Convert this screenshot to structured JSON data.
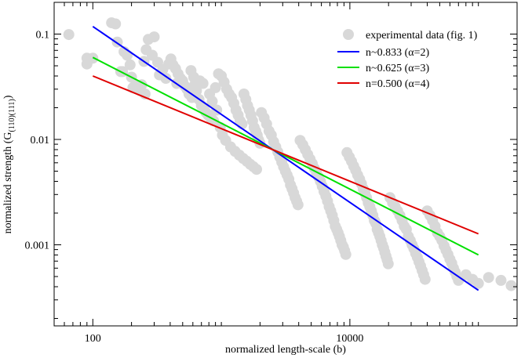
{
  "chart_data": {
    "type": "scatter",
    "title": "",
    "xlabel": "normalized length-scale (b)",
    "ylabel": {
      "main": "normalized strength (G",
      "subscript": "(110)(111)",
      "close": ")"
    },
    "xscale": "log",
    "yscale": "log",
    "xlim": [
      50,
      200000
    ],
    "ylim": [
      0.00017,
      0.2
    ],
    "x_ticks": [
      {
        "value": 100,
        "label": "100"
      },
      {
        "value": 10000,
        "label": "10000"
      }
    ],
    "y_ticks": [
      {
        "value": 0.001,
        "label": "0.001"
      },
      {
        "value": 0.01,
        "label": "0.01"
      },
      {
        "value": 0.1,
        "label": "0.1"
      }
    ],
    "grid": false,
    "legend_position": "top-right",
    "colors": {
      "scatter": "#d8d8d8",
      "n0833": "#0000ff",
      "n0625": "#00e000",
      "n0500": "#e00000"
    },
    "scatter": {
      "name": "experimental data (fig. 1)",
      "points": [
        [
          65,
          0.099
        ],
        [
          90,
          0.059
        ],
        [
          90,
          0.052
        ],
        [
          100,
          0.059
        ],
        [
          140,
          0.128
        ],
        [
          150,
          0.125
        ],
        [
          155,
          0.084
        ],
        [
          165,
          0.044
        ],
        [
          170,
          0.044
        ],
        [
          175,
          0.068
        ],
        [
          185,
          0.063
        ],
        [
          195,
          0.051
        ],
        [
          200,
          0.039
        ],
        [
          205,
          0.031
        ],
        [
          220,
          0.032
        ],
        [
          235,
          0.029
        ],
        [
          240,
          0.033
        ],
        [
          255,
          0.027
        ],
        [
          270,
          0.089
        ],
        [
          300,
          0.094
        ],
        [
          290,
          0.063
        ],
        [
          320,
          0.054
        ],
        [
          350,
          0.046
        ],
        [
          390,
          0.052
        ],
        [
          405,
          0.058
        ],
        [
          420,
          0.051
        ],
        [
          440,
          0.047
        ],
        [
          460,
          0.042
        ],
        [
          480,
          0.038
        ],
        [
          500,
          0.036
        ],
        [
          520,
          0.032
        ],
        [
          540,
          0.03
        ],
        [
          560,
          0.027
        ],
        [
          590,
          0.025
        ],
        [
          620,
          0.033
        ],
        [
          640,
          0.029
        ],
        [
          670,
          0.024
        ],
        [
          700,
          0.021
        ],
        [
          730,
          0.02
        ],
        [
          760,
          0.018
        ],
        [
          790,
          0.017
        ],
        [
          830,
          0.016
        ],
        [
          870,
          0.015
        ],
        [
          900,
          0.031
        ],
        [
          950,
          0.042
        ],
        [
          1000,
          0.04
        ],
        [
          1050,
          0.035
        ],
        [
          1100,
          0.03
        ],
        [
          1150,
          0.027
        ],
        [
          1200,
          0.025
        ],
        [
          1250,
          0.022
        ],
        [
          1300,
          0.019
        ],
        [
          1350,
          0.017
        ],
        [
          1400,
          0.015
        ],
        [
          1450,
          0.014
        ],
        [
          1500,
          0.027
        ],
        [
          1550,
          0.024
        ],
        [
          1600,
          0.021
        ],
        [
          1650,
          0.019
        ],
        [
          1700,
          0.017
        ],
        [
          1750,
          0.015
        ],
        [
          1800,
          0.013
        ],
        [
          1850,
          0.012
        ],
        [
          1900,
          0.011
        ],
        [
          1950,
          0.0099
        ],
        [
          2000,
          0.0092
        ],
        [
          2050,
          0.018
        ],
        [
          2150,
          0.016
        ],
        [
          2250,
          0.014
        ],
        [
          2350,
          0.012
        ],
        [
          2450,
          0.011
        ],
        [
          2550,
          0.0095
        ],
        [
          2650,
          0.0085
        ],
        [
          2750,
          0.0076
        ],
        [
          2850,
          0.0068
        ],
        [
          2950,
          0.0061
        ],
        [
          3050,
          0.0055
        ],
        [
          3150,
          0.005
        ],
        [
          3250,
          0.0046
        ],
        [
          3350,
          0.0042
        ],
        [
          3450,
          0.0037
        ],
        [
          3550,
          0.0034
        ],
        [
          3650,
          0.0031
        ],
        [
          3750,
          0.0028
        ],
        [
          3850,
          0.0026
        ],
        [
          3950,
          0.0024
        ],
        [
          4100,
          0.0098
        ],
        [
          4300,
          0.0089
        ],
        [
          4500,
          0.008
        ],
        [
          4700,
          0.0072
        ],
        [
          4900,
          0.0065
        ],
        [
          5100,
          0.0059
        ],
        [
          5300,
          0.0053
        ],
        [
          5500,
          0.0048
        ],
        [
          5700,
          0.0044
        ],
        [
          5900,
          0.004
        ],
        [
          6100,
          0.0036
        ],
        [
          6300,
          0.0032
        ],
        [
          6500,
          0.0029
        ],
        [
          6700,
          0.0026
        ],
        [
          6900,
          0.0023
        ],
        [
          7100,
          0.0021
        ],
        [
          7300,
          0.0019
        ],
        [
          7500,
          0.0017
        ],
        [
          7700,
          0.0015
        ],
        [
          7900,
          0.0014
        ],
        [
          8100,
          0.0013
        ],
        [
          8300,
          0.0012
        ],
        [
          8500,
          0.0011
        ],
        [
          8700,
          0.001
        ],
        [
          8900,
          0.00095
        ],
        [
          9100,
          0.00088
        ],
        [
          9300,
          0.00081
        ],
        [
          9500,
          0.0075
        ],
        [
          9900,
          0.0068
        ],
        [
          10300,
          0.0062
        ],
        [
          10700,
          0.0056
        ],
        [
          11100,
          0.0051
        ],
        [
          11500,
          0.0046
        ],
        [
          11900,
          0.0042
        ],
        [
          12300,
          0.0038
        ],
        [
          12700,
          0.0034
        ],
        [
          13100,
          0.0031
        ],
        [
          13500,
          0.0028
        ],
        [
          13900,
          0.0025
        ],
        [
          14300,
          0.0023
        ],
        [
          14700,
          0.0021
        ],
        [
          15100,
          0.0019
        ],
        [
          15500,
          0.0017
        ],
        [
          15900,
          0.0016
        ],
        [
          16300,
          0.0014
        ],
        [
          16700,
          0.0013
        ],
        [
          17100,
          0.0012
        ],
        [
          17500,
          0.0011
        ],
        [
          17900,
          0.001
        ],
        [
          18300,
          0.00093
        ],
        [
          18700,
          0.00085
        ],
        [
          19100,
          0.00078
        ],
        [
          19500,
          0.00072
        ],
        [
          19900,
          0.00066
        ],
        [
          20500,
          0.0028
        ],
        [
          21500,
          0.0025
        ],
        [
          22500,
          0.0023
        ],
        [
          23500,
          0.0021
        ],
        [
          24500,
          0.0019
        ],
        [
          25500,
          0.0017
        ],
        [
          26500,
          0.0015
        ],
        [
          27500,
          0.0014
        ],
        [
          28500,
          0.0012
        ],
        [
          29500,
          0.0011
        ],
        [
          30500,
          0.001
        ],
        [
          31500,
          0.00092
        ],
        [
          32500,
          0.00083
        ],
        [
          33500,
          0.00076
        ],
        [
          34500,
          0.00069
        ],
        [
          35500,
          0.00063
        ],
        [
          36500,
          0.00057
        ],
        [
          37500,
          0.00052
        ],
        [
          38500,
          0.00047
        ],
        [
          40000,
          0.0021
        ],
        [
          42000,
          0.0019
        ],
        [
          44000,
          0.0017
        ],
        [
          46000,
          0.0015
        ],
        [
          48000,
          0.0013
        ],
        [
          50000,
          0.0012
        ],
        [
          52000,
          0.0011
        ],
        [
          54000,
          0.00098
        ],
        [
          56000,
          0.00089
        ],
        [
          58000,
          0.00081
        ],
        [
          60000,
          0.00073
        ],
        [
          62000,
          0.00067
        ],
        [
          64000,
          0.0006
        ],
        [
          66000,
          0.00055
        ],
        [
          68000,
          0.0005
        ],
        [
          70000,
          0.00046
        ],
        [
          80000,
          0.00052
        ],
        [
          90000,
          0.00047
        ],
        [
          100000,
          0.00043
        ],
        [
          120000,
          0.00049
        ],
        [
          150000,
          0.00046
        ],
        [
          180000,
          0.00041
        ],
        [
          250,
          0.055
        ],
        [
          260,
          0.071
        ],
        [
          330,
          0.041
        ],
        [
          370,
          0.038
        ],
        [
          450,
          0.034
        ],
        [
          580,
          0.045
        ],
        [
          610,
          0.039
        ],
        [
          680,
          0.036
        ],
        [
          720,
          0.034
        ],
        [
          810,
          0.027
        ],
        [
          850,
          0.023
        ],
        [
          920,
          0.019
        ],
        [
          980,
          0.013
        ],
        [
          1020,
          0.011
        ],
        [
          1080,
          0.0098
        ],
        [
          1180,
          0.0085
        ],
        [
          1280,
          0.0077
        ],
        [
          1380,
          0.0071
        ],
        [
          1480,
          0.0066
        ],
        [
          1580,
          0.0062
        ],
        [
          1680,
          0.0058
        ],
        [
          1780,
          0.0055
        ],
        [
          1880,
          0.0052
        ]
      ]
    },
    "series": [
      {
        "name": "n~0.833 (α=2)",
        "color_key": "n0833",
        "x": [
          100,
          100000
        ],
        "y": [
          0.118,
          0.00037
        ]
      },
      {
        "name": "n~0.625 (α=3)",
        "color_key": "n0625",
        "x": [
          100,
          100000
        ],
        "y": [
          0.06,
          0.000802
        ]
      },
      {
        "name": "n=0.500 (α=4)",
        "color_key": "n0500",
        "x": [
          100,
          100000
        ],
        "y": [
          0.04,
          0.00127
        ]
      }
    ]
  }
}
